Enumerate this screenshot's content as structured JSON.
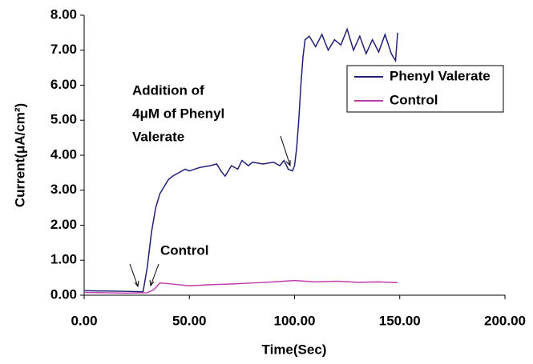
{
  "chart_data": {
    "type": "line",
    "xlabel": "Time(Sec)",
    "ylabel": "Current(μA/cm²)",
    "xlim": [
      0,
      200
    ],
    "ylim": [
      0,
      8
    ],
    "xticks": [
      {
        "value": 0,
        "label": "0.00"
      },
      {
        "value": 50,
        "label": "50.00"
      },
      {
        "value": 100,
        "label": "100.00"
      },
      {
        "value": 150,
        "label": "150.00"
      },
      {
        "value": 200,
        "label": "200.00"
      }
    ],
    "yticks": [
      {
        "value": 0,
        "label": "0.00"
      },
      {
        "value": 1,
        "label": "1.00"
      },
      {
        "value": 2,
        "label": "2.00"
      },
      {
        "value": 3,
        "label": "3.00"
      },
      {
        "value": 4,
        "label": "4.00"
      },
      {
        "value": 5,
        "label": "5.00"
      },
      {
        "value": 6,
        "label": "6.00"
      },
      {
        "value": 7,
        "label": "7.00"
      },
      {
        "value": 8,
        "label": "8.00"
      }
    ],
    "legend": "right",
    "annotations": [
      "Addition of",
      "4μM of Phenyl",
      "Valerate",
      "Control"
    ],
    "series": [
      {
        "name": "Phenyl Valerate",
        "color": "#1f1f78",
        "x": [
          0,
          10,
          20,
          27,
          28,
          30,
          32,
          34,
          36,
          38,
          40,
          42,
          45,
          48,
          50,
          55,
          60,
          63,
          65,
          67,
          70,
          73,
          75,
          78,
          80,
          85,
          90,
          93,
          95,
          97,
          99,
          100,
          101,
          102,
          103,
          104,
          105,
          107,
          110,
          113,
          116,
          119,
          122,
          125,
          128,
          131,
          134,
          137,
          140,
          143,
          146,
          148,
          149
        ],
        "values": [
          0.13,
          0.12,
          0.11,
          0.1,
          0.1,
          0.8,
          1.8,
          2.5,
          2.9,
          3.1,
          3.3,
          3.4,
          3.5,
          3.6,
          3.55,
          3.65,
          3.7,
          3.75,
          3.55,
          3.4,
          3.7,
          3.6,
          3.85,
          3.7,
          3.8,
          3.75,
          3.8,
          3.7,
          3.85,
          3.6,
          3.55,
          3.7,
          4.2,
          5.0,
          6.0,
          6.8,
          7.3,
          7.4,
          7.1,
          7.45,
          7.0,
          7.3,
          7.15,
          7.6,
          7.0,
          7.4,
          6.9,
          7.3,
          6.95,
          7.45,
          6.9,
          6.7,
          7.5
        ]
      },
      {
        "name": "Control",
        "color": "#c03caa",
        "x": [
          0,
          10,
          20,
          30,
          33,
          36,
          40,
          50,
          60,
          70,
          80,
          90,
          100,
          110,
          120,
          130,
          140,
          149
        ],
        "values": [
          0.08,
          0.07,
          0.06,
          0.07,
          0.15,
          0.35,
          0.33,
          0.27,
          0.3,
          0.32,
          0.35,
          0.38,
          0.42,
          0.38,
          0.4,
          0.37,
          0.38,
          0.36
        ]
      }
    ]
  }
}
